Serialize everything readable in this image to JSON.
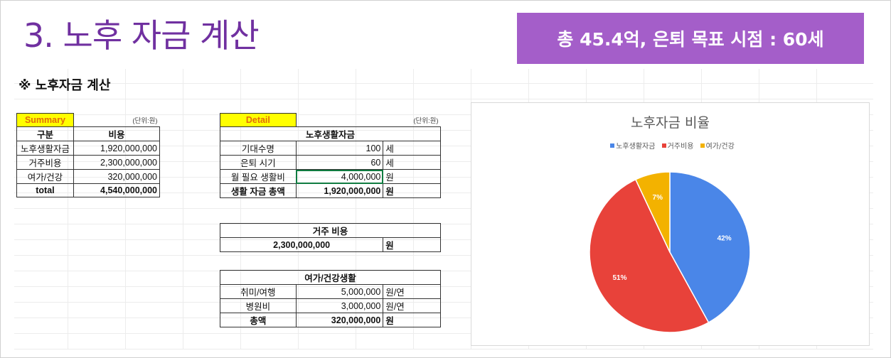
{
  "title": "3. 노후 자금 계산",
  "banner": "총 45.4억, 은퇴 목표 시점  : 60세",
  "section_title": "※ 노후자금 계산",
  "summary": {
    "label": "Summary",
    "unit": "(단위:원)",
    "headers": [
      "구분",
      "비용"
    ],
    "rows": [
      {
        "name": "노후생활자금",
        "value": "1,920,000,000"
      },
      {
        "name": "거주비용",
        "value": "2,300,000,000"
      },
      {
        "name": "여가/건강",
        "value": "320,000,000"
      }
    ],
    "total": {
      "name": "total",
      "value": "4,540,000,000"
    }
  },
  "detail": {
    "label": "Detail",
    "unit": "(단위:원)",
    "living": {
      "header": "노후생활자금",
      "rows": [
        {
          "name": "기대수명",
          "value": "100",
          "unit": "세"
        },
        {
          "name": "은퇴 시기",
          "value": "60",
          "unit": "세"
        },
        {
          "name": "월 필요 생활비",
          "value": "4,000,000",
          "unit": "원"
        },
        {
          "name": "생활 자금 총액",
          "value": "1,920,000,000",
          "unit": "원"
        }
      ]
    },
    "housing": {
      "header": "거주 비용",
      "value": "2,300,000,000",
      "unit": "원"
    },
    "leisure": {
      "header": "여가/건강생활",
      "rows": [
        {
          "name": "취미/여행",
          "value": "5,000,000",
          "unit": "원/연"
        },
        {
          "name": "병원비",
          "value": "3,000,000",
          "unit": "원/연"
        },
        {
          "name": "총액",
          "value": "320,000,000",
          "unit": "원"
        }
      ]
    }
  },
  "chart_data": {
    "type": "pie",
    "title": "노후자금 비율",
    "categories": [
      "노후생활자금",
      "거주비용",
      "여가/건강"
    ],
    "values": [
      42,
      51,
      7
    ],
    "labels": [
      "42%",
      "51%",
      "7%"
    ],
    "colors": [
      "#4a86e8",
      "#e8423a",
      "#f3b200"
    ],
    "legend_position": "top"
  }
}
